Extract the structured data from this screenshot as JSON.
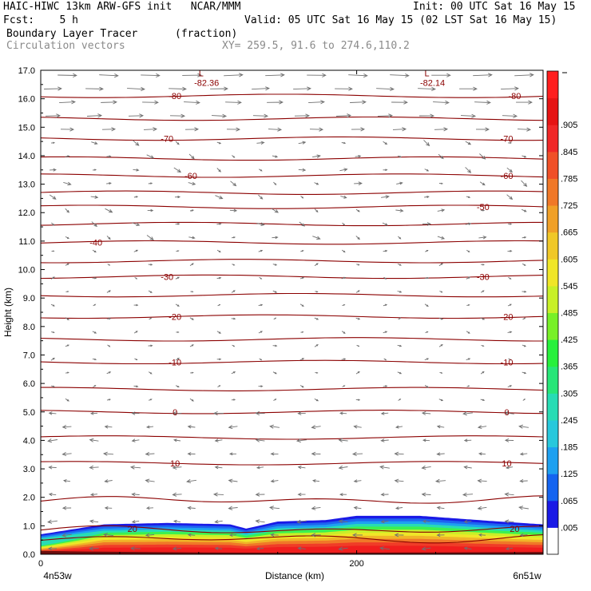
{
  "header": {
    "line1_left": "HAIC-HIWC 13km ARW-GFS init   NCAR/MMM",
    "line1_right": "Init: 00 UTC Sat 16 May 15",
    "line2_left": "Fcst:    5 h",
    "line2_right": "Valid: 05 UTC Sat 16 May 15 (02 LST Sat 16 May 15)",
    "line3_left": "Boundary Layer Tracer",
    "line3_units": "(fraction)",
    "line4_left": "Circulation vectors",
    "line4_xy": "XY= 259.5, 91.6 to 274.6,110.2"
  },
  "colors": {
    "isotherm": "#8b0000",
    "vector": "#707070",
    "frame": "#000000"
  },
  "chart_data": {
    "type": "heatmap",
    "xlabel": "Distance (km)",
    "ylabel": "Height (km)",
    "xlim": [
      0,
      318
    ],
    "ylim": [
      0,
      17
    ],
    "x_ticks": [
      0,
      200
    ],
    "x_endpoint_labels": [
      "4n53w",
      "6n51w"
    ],
    "y_ticks": [
      0.0,
      1.0,
      2.0,
      3.0,
      4.0,
      5.0,
      6.0,
      7.0,
      8.0,
      9.0,
      10.0,
      11.0,
      12.0,
      13.0,
      14.0,
      15.0,
      16.0,
      17.0
    ],
    "y_tick_labels": [
      "0.0",
      "1.0",
      "2.0",
      "3.0",
      "4.0",
      "5.0",
      "6.0",
      "7.0",
      "8.0",
      "9.0",
      "10.0",
      "11.0",
      "12.0",
      "13.0",
      "14.0",
      "15.0",
      "16.0",
      "17.0"
    ],
    "colorbar_labels": [
      ".005",
      ".065",
      ".125",
      ".185",
      ".245",
      ".305",
      ".365",
      ".425",
      ".485",
      ".545",
      ".605",
      ".665",
      ".725",
      ".785",
      ".845",
      ".905"
    ],
    "colorbar_colors": [
      "#ffffff",
      "#1a1ae6",
      "#1464f0",
      "#1ea0f0",
      "#28c8dc",
      "#28dcb4",
      "#28e678",
      "#28f03c",
      "#78f028",
      "#c8f028",
      "#f0e628",
      "#f0c828",
      "#f0a028",
      "#f07828",
      "#f05028",
      "#f02828",
      "#e61414",
      "#ff1e1e"
    ],
    "tracer_top_km": [
      [
        0,
        0.7
      ],
      [
        40,
        1.05
      ],
      [
        80,
        1.1
      ],
      [
        120,
        1.05
      ],
      [
        130,
        0.9
      ],
      [
        150,
        1.15
      ],
      [
        180,
        1.2
      ],
      [
        200,
        1.35
      ],
      [
        240,
        1.35
      ],
      [
        290,
        1.15
      ],
      [
        318,
        1.05
      ]
    ],
    "temperature_contours": [
      {
        "label": "20",
        "levels_km": [
          0.85
        ],
        "label_positions": [
          [
            58,
            0.9
          ],
          [
            300,
            0.9
          ]
        ]
      },
      {
        "label": "10",
        "levels_km": [
          3.2
        ],
        "label_positions": [
          [
            85,
            3.2
          ],
          [
            295,
            3.2
          ]
        ]
      },
      {
        "label": "0",
        "levels_km": [
          5.0
        ],
        "label_positions": [
          [
            85,
            5.0
          ],
          [
            295,
            5.0
          ]
        ]
      },
      {
        "label": "-10",
        "levels_km": [
          6.75
        ],
        "label_positions": [
          [
            85,
            6.75
          ],
          [
            295,
            6.75
          ]
        ]
      },
      {
        "label": "-20",
        "levels_km": [
          8.35
        ],
        "label_positions": [
          [
            85,
            8.35
          ],
          [
            295,
            8.35
          ]
        ]
      },
      {
        "label": "-30",
        "levels_km": [
          9.75
        ],
        "label_positions": [
          [
            80,
            9.75
          ],
          [
            280,
            9.75
          ]
        ]
      },
      {
        "label": "-40",
        "levels_km": [
          10.95
        ],
        "label_positions": [
          [
            35,
            10.95
          ]
        ]
      },
      {
        "label": "-50",
        "levels_km": [
          12.2
        ],
        "label_positions": [
          [
            280,
            12.2
          ]
        ]
      },
      {
        "label": "-60",
        "levels_km": [
          13.3
        ],
        "label_positions": [
          [
            95,
            13.3
          ],
          [
            295,
            13.3
          ]
        ]
      },
      {
        "label": "-70",
        "levels_km": [
          14.6
        ],
        "label_positions": [
          [
            80,
            14.6
          ],
          [
            295,
            14.6
          ]
        ]
      },
      {
        "label": "-80",
        "levels_km": [
          16.1
        ],
        "label_positions": [
          [
            85,
            16.1
          ],
          [
            300,
            16.1
          ]
        ]
      }
    ],
    "extra_contour_levels_km": [
      0.55,
      1.9,
      4.1,
      5.8,
      7.55,
      9.1,
      10.3,
      11.6,
      12.7,
      13.9,
      15.3
    ],
    "minima": [
      {
        "marker": "L",
        "label": "-82.36",
        "position": [
          105,
          16.7
        ]
      },
      {
        "marker": "L",
        "label": "-82.14",
        "position": [
          248,
          16.7
        ]
      }
    ],
    "legend_placement": "right colorbar"
  }
}
